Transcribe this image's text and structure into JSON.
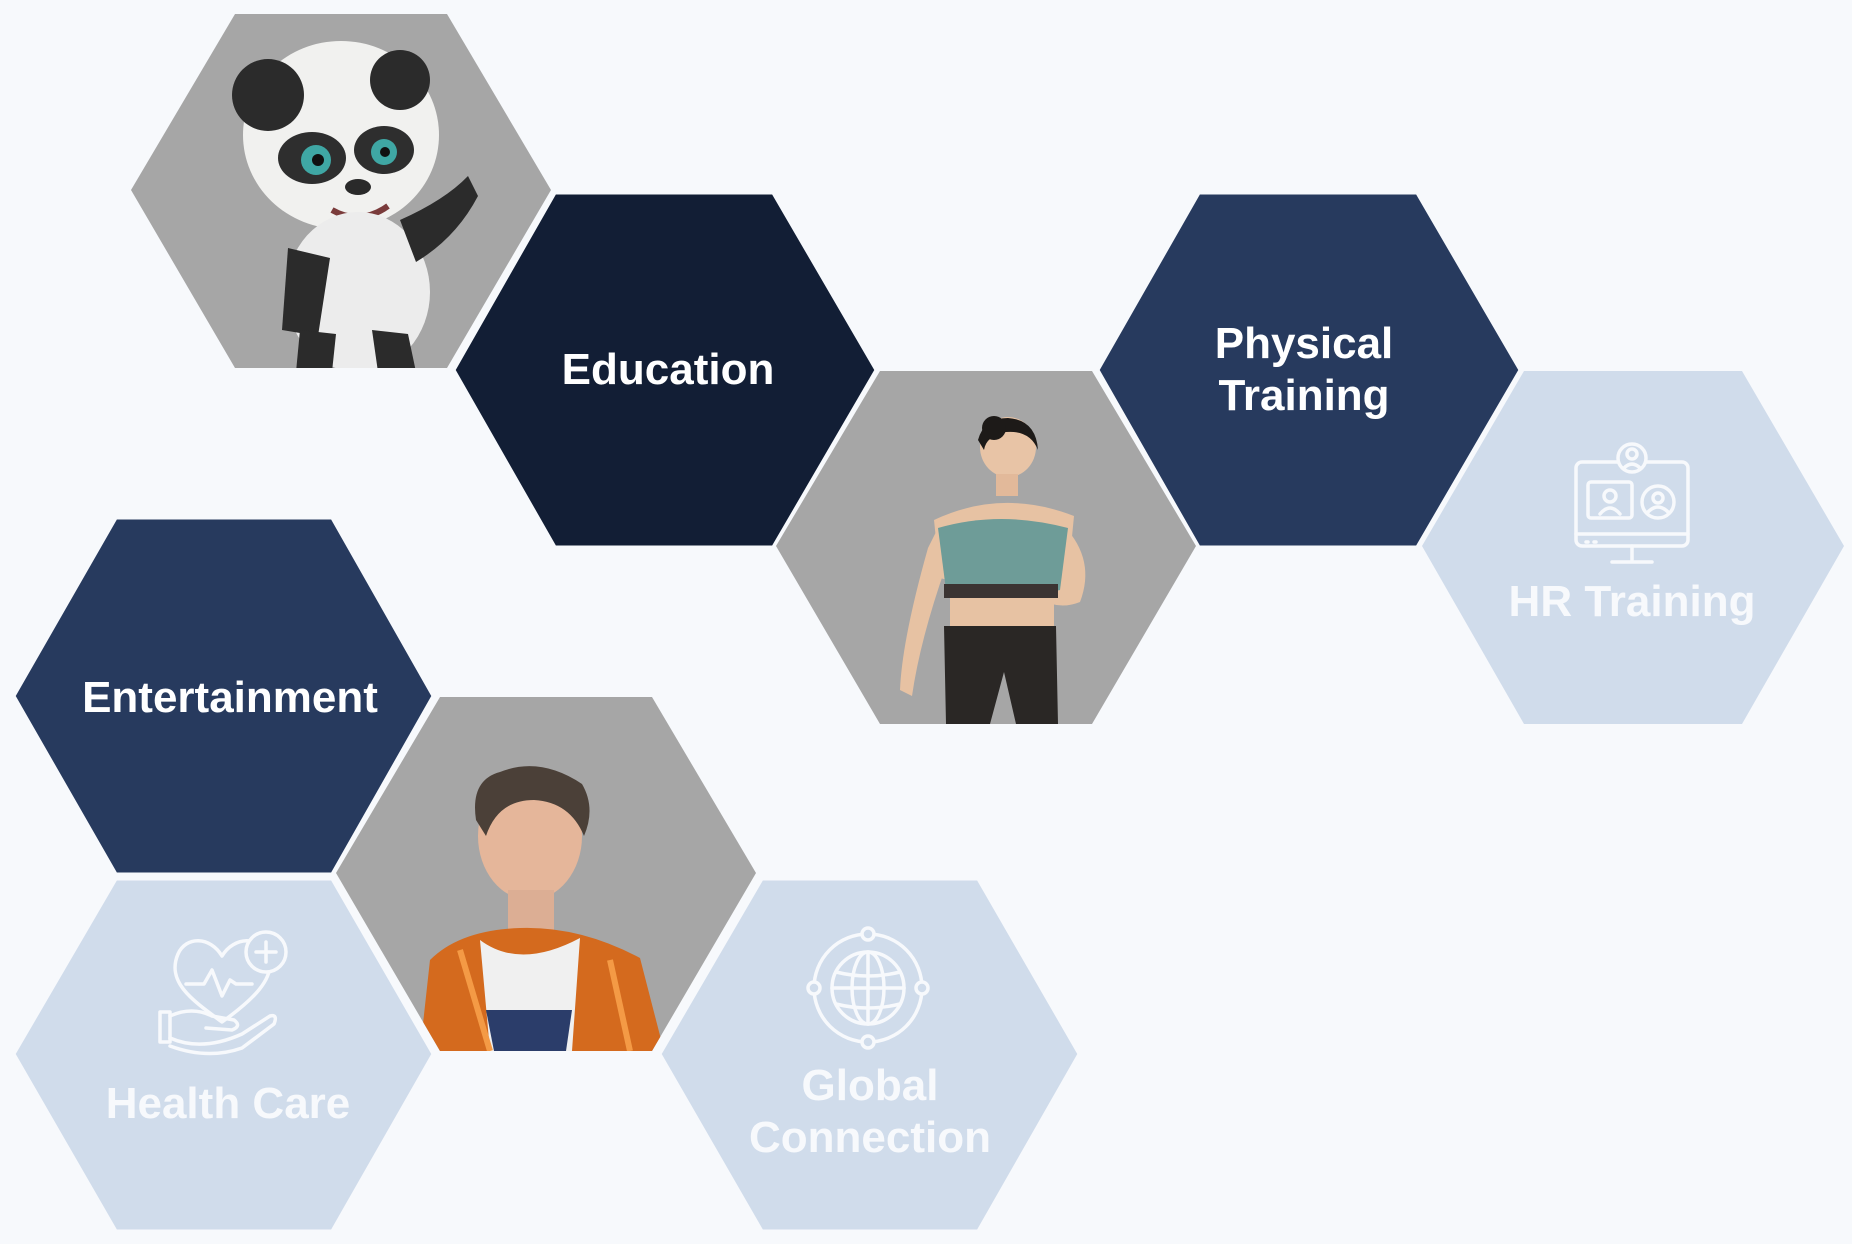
{
  "colors": {
    "background": "#f7f9fc",
    "dark_navy": "#121e35",
    "navy": "#273a5e",
    "light_blue": "#d0dceb",
    "gray": "#a6a6a6",
    "white_text": "#ffffff",
    "light_text": "#f7f9fc"
  },
  "tiles": {
    "panda": {
      "kind": "image",
      "depicts": "3d-panda-character-waving"
    },
    "education": {
      "kind": "label",
      "lines": [
        "Education"
      ]
    },
    "physical_training": {
      "kind": "label",
      "lines": [
        "Physical",
        "Training"
      ]
    },
    "fitness_woman": {
      "kind": "image",
      "depicts": "3d-woman-in-sportswear"
    },
    "hr_training": {
      "kind": "icon-label",
      "icon": "video-conference-icon",
      "lines": [
        "HR Training"
      ]
    },
    "entertainment": {
      "kind": "label",
      "lines": [
        "Entertainment"
      ]
    },
    "singer": {
      "kind": "image",
      "depicts": "3d-young-man-in-orange-jacket"
    },
    "health_care": {
      "kind": "icon-label",
      "icon": "heart-hand-icon",
      "lines": [
        "Health Care"
      ]
    },
    "global_connection": {
      "kind": "icon-label",
      "icon": "globe-network-icon",
      "lines": [
        "Global",
        "Connection"
      ]
    }
  }
}
